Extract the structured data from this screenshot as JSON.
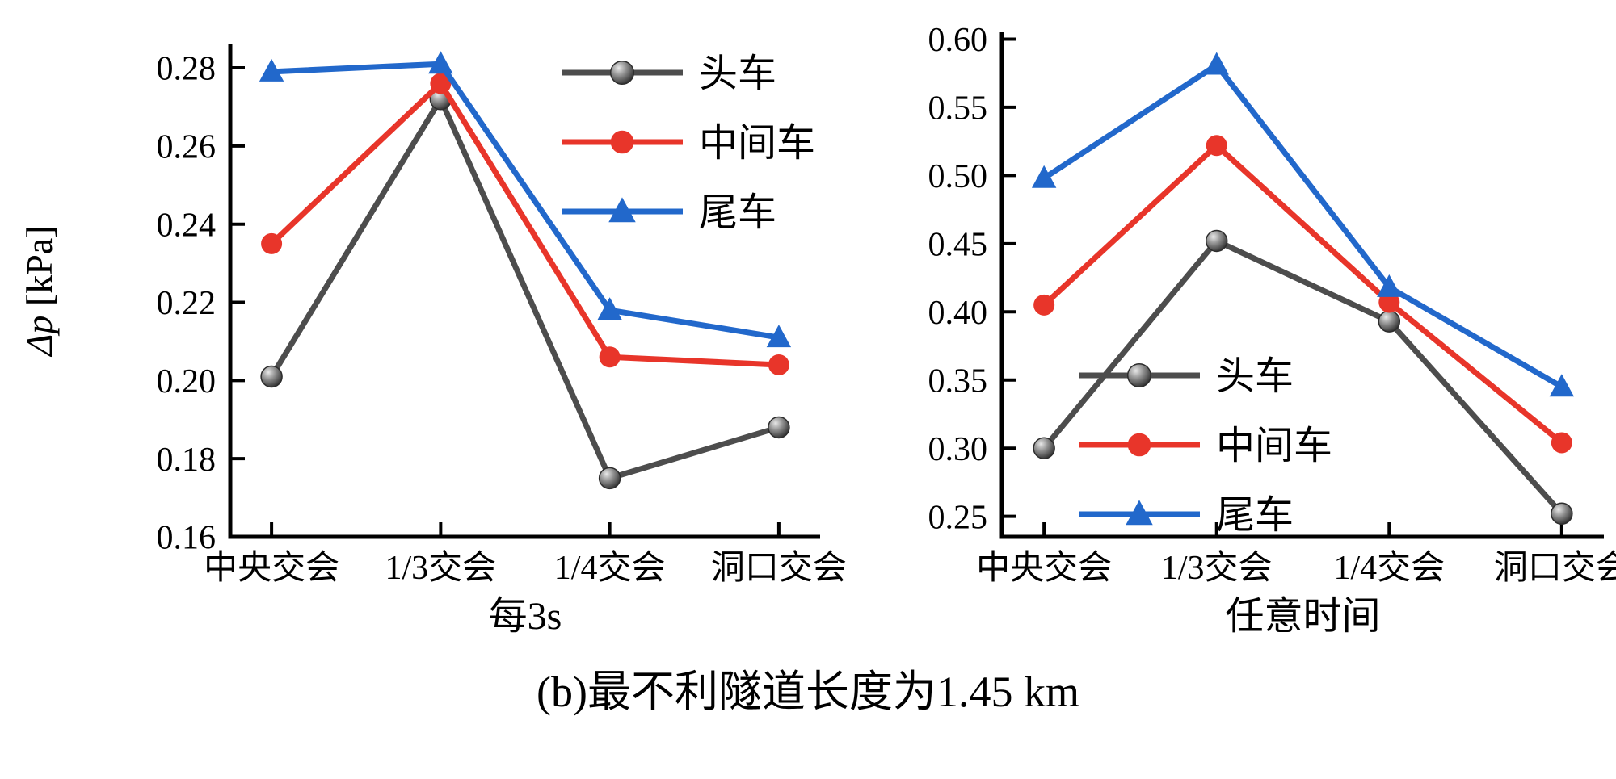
{
  "caption": "(b)最不利隧道长度为1.45 km",
  "chart_data": [
    {
      "type": "line",
      "title": "",
      "xlabel": "每3s",
      "ylabel": "Δp [kPa]",
      "categories": [
        "中央交会",
        "1/3交会",
        "1/4交会",
        "洞口交会"
      ],
      "ylim": [
        0.16,
        0.286
      ],
      "yticks": [
        0.16,
        0.18,
        0.2,
        0.22,
        0.24,
        0.26,
        0.28
      ],
      "grid": false,
      "legend_position": "upper-right",
      "series": [
        {
          "name": "头车",
          "color": "#4d4d4d",
          "marker": "sphere",
          "values": [
            0.201,
            0.272,
            0.175,
            0.188
          ]
        },
        {
          "name": "中间车",
          "color": "#e8352a",
          "marker": "circle",
          "values": [
            0.235,
            0.276,
            0.206,
            0.204
          ]
        },
        {
          "name": "尾车",
          "color": "#2268cb",
          "marker": "triangle",
          "values": [
            0.279,
            0.281,
            0.218,
            0.211
          ]
        }
      ]
    },
    {
      "type": "line",
      "title": "",
      "xlabel": "任意时间",
      "ylabel": "",
      "categories": [
        "中央交会",
        "1/3交会",
        "1/4交会",
        "洞口交会"
      ],
      "ylim": [
        0.235,
        0.605
      ],
      "yticks": [
        0.25,
        0.3,
        0.35,
        0.4,
        0.45,
        0.5,
        0.55,
        0.6
      ],
      "grid": false,
      "legend_position": "center-left",
      "series": [
        {
          "name": "头车",
          "color": "#4d4d4d",
          "marker": "sphere",
          "values": [
            0.3,
            0.452,
            0.393,
            0.252
          ]
        },
        {
          "name": "中间车",
          "color": "#e8352a",
          "marker": "circle",
          "values": [
            0.405,
            0.522,
            0.407,
            0.304
          ]
        },
        {
          "name": "尾车",
          "color": "#2268cb",
          "marker": "triangle",
          "values": [
            0.498,
            0.581,
            0.418,
            0.345
          ]
        }
      ]
    }
  ]
}
